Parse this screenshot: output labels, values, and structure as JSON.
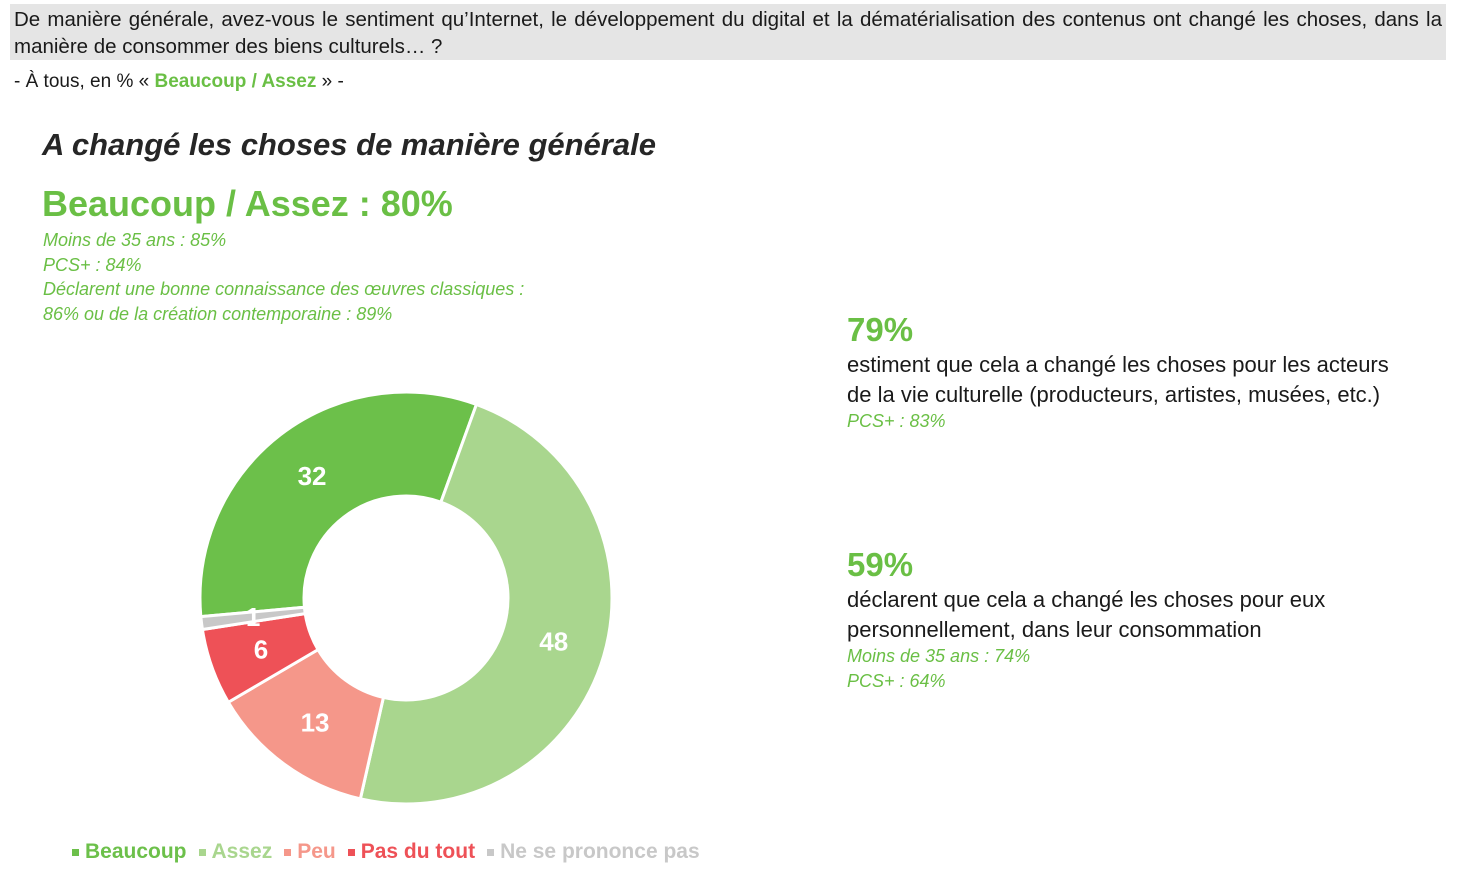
{
  "question": {
    "text": "De manière générale, avez-vous le sentiment qu’Internet, le développement du digital et la dématérialisation des contenus ont changé les choses, dans la manière de consommer des biens culturels… ?",
    "base_prefix": "- À tous, en % «",
    "base_highlight": "Beaucoup / Assez",
    "base_suffix": "» -"
  },
  "title": "A changé les choses de manière générale",
  "headline": "Beaucoup / Assez : 80%",
  "details": [
    "Moins de 35 ans : 85%",
    "PCS+ : 84%",
    "Déclarent une bonne connaissance des œuvres classiques :",
    "86% ou de la création contemporaine : 89%"
  ],
  "stats": [
    {
      "pct": "79%",
      "text": "estiment que cela a changé les choses pour les acteurs de la vie culturelle (producteurs, artistes, musées, etc.)",
      "notes": [
        "PCS+ : 83%"
      ]
    },
    {
      "pct": "59%",
      "text": "déclarent que cela a changé les choses pour eux personnellement, dans leur consommation",
      "notes": [
        "Moins de 35 ans : 74%",
        "PCS+ : 64%"
      ]
    }
  ],
  "legend": [
    {
      "label": "Beaucoup",
      "color": "#6cc04a"
    },
    {
      "label": "Assez",
      "color": "#a9d68e"
    },
    {
      "label": "Peu",
      "color": "#f5978a"
    },
    {
      "label": "Pas du tout",
      "color": "#ee5157"
    },
    {
      "label": "Ne se prononce pas",
      "color": "#c8c8c8"
    }
  ],
  "chart_data": {
    "type": "pie",
    "variant": "donut",
    "categories": [
      "Beaucoup",
      "Assez",
      "Peu",
      "Pas du tout",
      "Ne se prononce pas"
    ],
    "values": [
      32,
      48,
      13,
      6,
      1
    ],
    "labels": [
      "32",
      "48",
      "13",
      "6",
      "1"
    ],
    "colors": [
      "#6cc04a",
      "#a9d68e",
      "#f5978a",
      "#ee5157",
      "#c8c8c8"
    ],
    "legend_position": "bottom"
  }
}
